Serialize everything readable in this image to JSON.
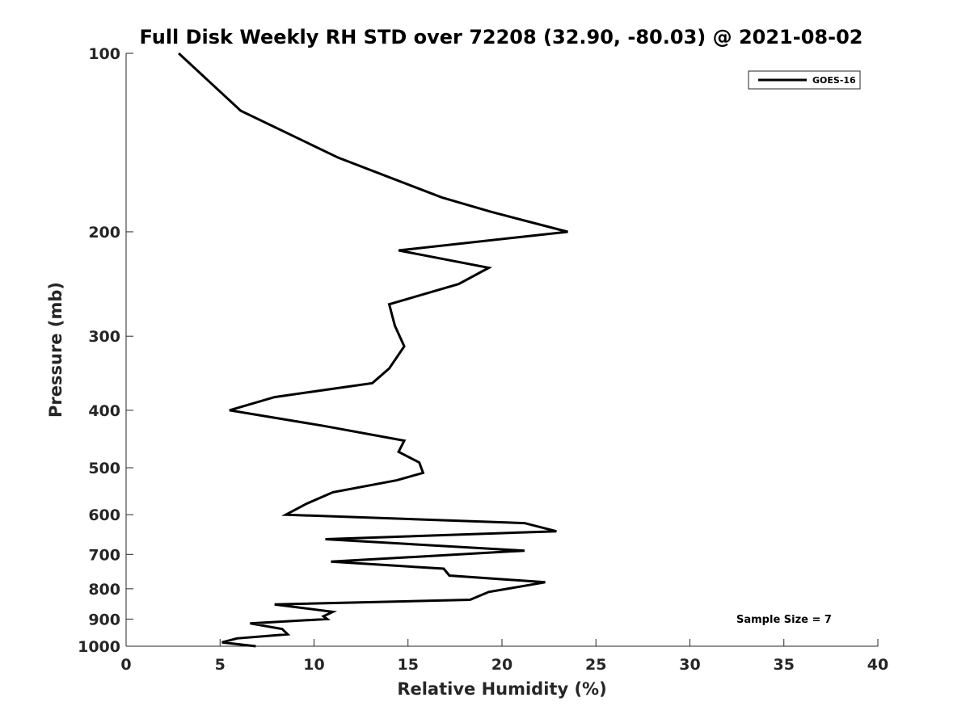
{
  "chart_data": {
    "type": "line",
    "title": "Full Disk Weekly RH STD over 72208 (32.90, -80.03) @ 2021-08-02",
    "xlabel": "Relative Humidity (%)",
    "ylabel": "Pressure (mb)",
    "xlim": [
      0,
      40
    ],
    "ylim": [
      100,
      1000
    ],
    "y_scale": "log",
    "y_reversed": true,
    "grid": false,
    "legend_position": "top-right",
    "x_ticks": [
      "0",
      "5",
      "10",
      "15",
      "20",
      "25",
      "30",
      "35",
      "40"
    ],
    "y_ticks": [
      "100",
      "200",
      "300",
      "400",
      "500",
      "600",
      "700",
      "800",
      "900",
      "1000"
    ],
    "annotation": "Sample Size = 7",
    "series": [
      {
        "name": "GOES-16",
        "color": "#000000",
        "x": [
          2.8,
          6.1,
          11.3,
          16.8,
          19.4,
          23.5,
          14.5,
          19.3,
          17.7,
          14.0,
          14.3,
          14.8,
          14.0,
          13.1,
          7.9,
          5.5,
          10.5,
          14.8,
          14.5,
          15.6,
          15.8,
          14.4,
          11.0,
          9.6,
          8.5,
          21.2,
          22.9,
          10.6,
          21.2,
          10.9,
          16.9,
          17.2,
          22.3,
          19.3,
          18.3,
          7.9,
          11.0,
          10.5,
          10.7,
          6.6,
          8.3,
          8.6,
          5.9,
          5.1,
          6.9
        ],
        "y": [
          100,
          125,
          150,
          175,
          185,
          200,
          215,
          230,
          245,
          265,
          288,
          312,
          340,
          360,
          380,
          400,
          425,
          450,
          470,
          490,
          510,
          525,
          550,
          575,
          600,
          620,
          640,
          660,
          690,
          720,
          740,
          760,
          780,
          810,
          835,
          850,
          875,
          890,
          900,
          915,
          935,
          955,
          970,
          985,
          1000
        ]
      }
    ]
  }
}
